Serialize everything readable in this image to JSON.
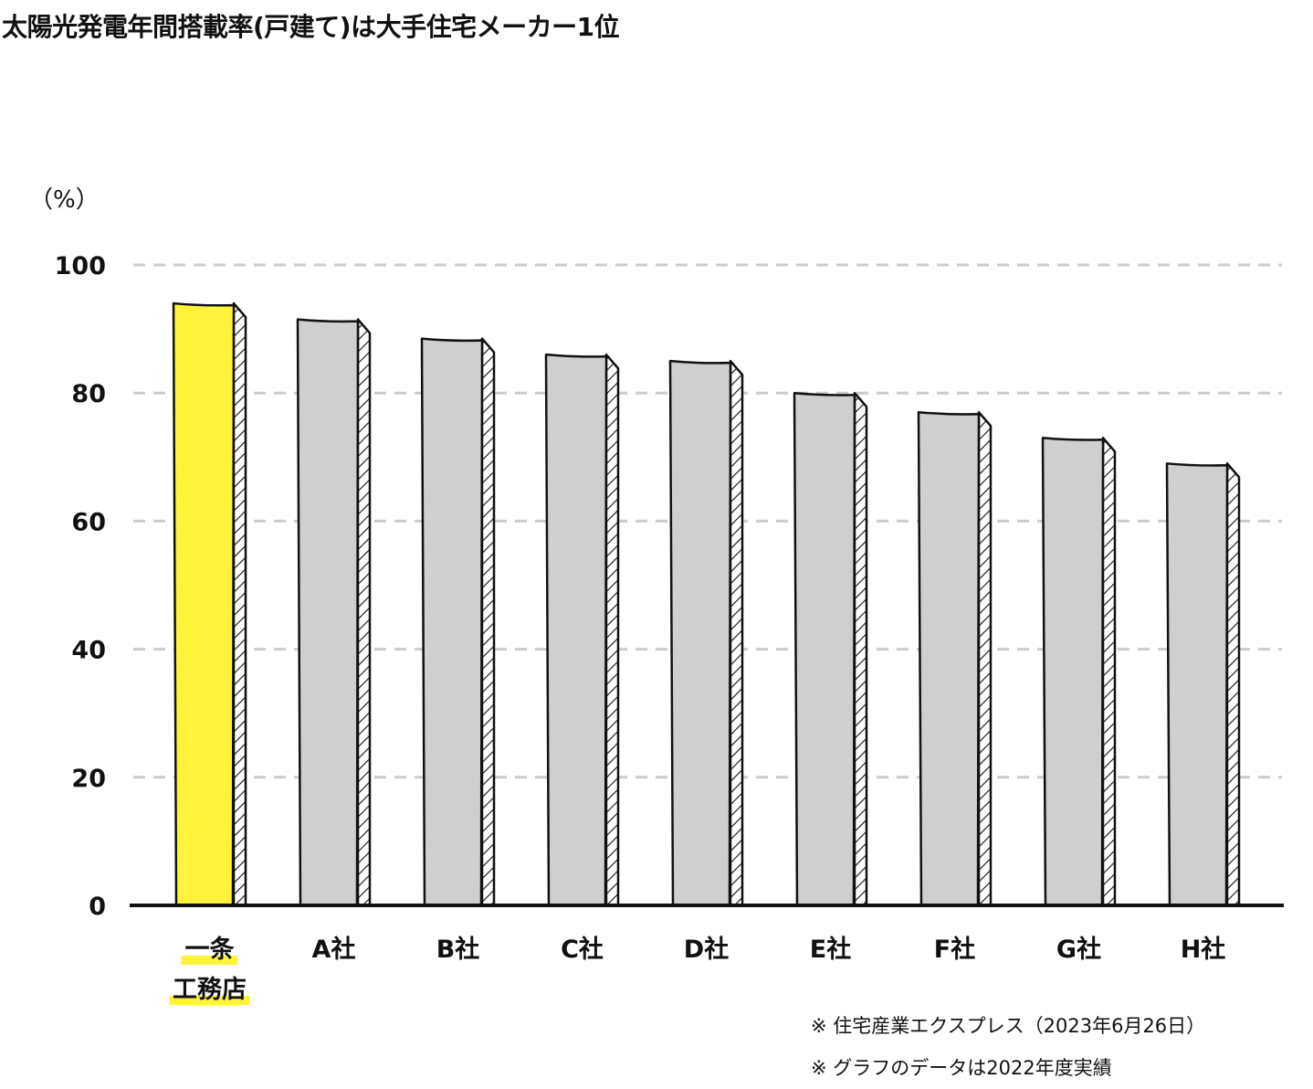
{
  "chart_data": {
    "type": "bar",
    "title": "太陽光発電年間搭載率(戸建て)は大手住宅メーカー1位",
    "ylabel": "（%）",
    "ylim": [
      0,
      100
    ],
    "yticks": [
      "0",
      "20",
      "40",
      "60",
      "80",
      "100"
    ],
    "grid": true,
    "categories": [
      [
        "一条",
        "工務店"
      ],
      [
        "A社"
      ],
      [
        "B社"
      ],
      [
        "C社"
      ],
      [
        "D社"
      ],
      [
        "E社"
      ],
      [
        "F社"
      ],
      [
        "G社"
      ],
      [
        "H社"
      ]
    ],
    "values": [
      94,
      91.5,
      88.5,
      86,
      85,
      80,
      77,
      73,
      69
    ],
    "highlight_index": 0,
    "colors": {
      "highlight": "#FFF23A",
      "bar": "#CFCFCF",
      "grid": "#CCCCCC",
      "axis": "#111111"
    }
  },
  "notes": [
    "※ 住宅産業エクスプレス（2023年6月26日）",
    "※ グラフのデータは2022年度実績"
  ]
}
